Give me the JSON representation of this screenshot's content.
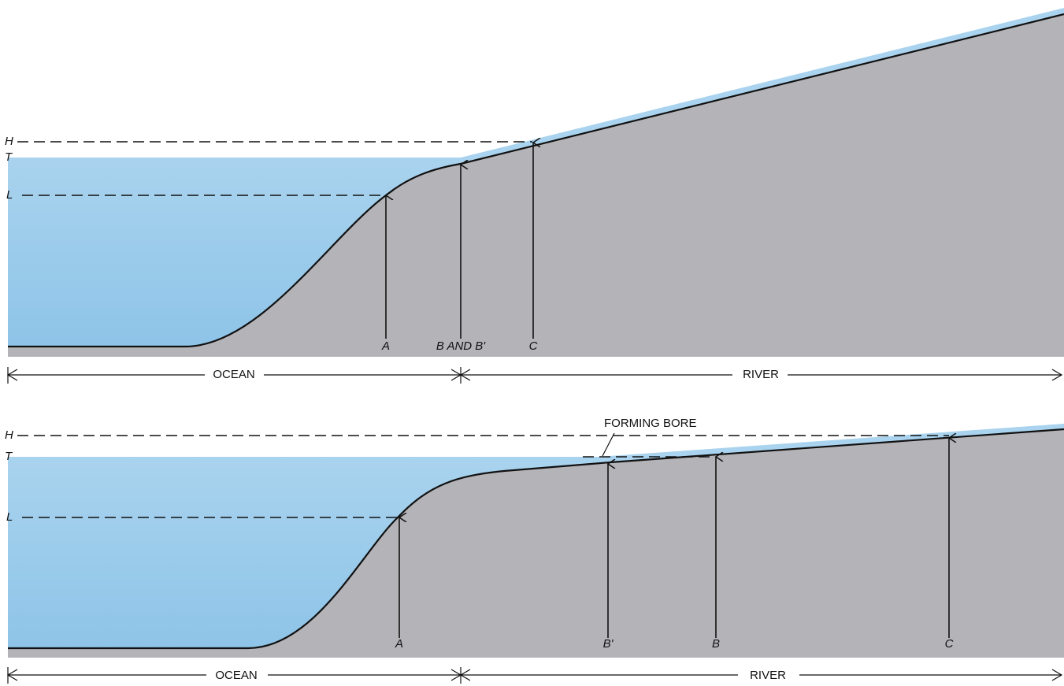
{
  "panels": [
    {
      "levels": {
        "high": "H",
        "tide": "T",
        "low": "L"
      },
      "points": [
        "A",
        "B AND B'",
        "C"
      ],
      "regions": [
        "OCEAN",
        "RIVER"
      ]
    },
    {
      "levels": {
        "high": "H",
        "tide": "T",
        "low": "L"
      },
      "annotation": "FORMING BORE",
      "points": [
        "A",
        "B'",
        "B",
        "C"
      ],
      "regions": [
        "OCEAN",
        "RIVER"
      ]
    }
  ]
}
